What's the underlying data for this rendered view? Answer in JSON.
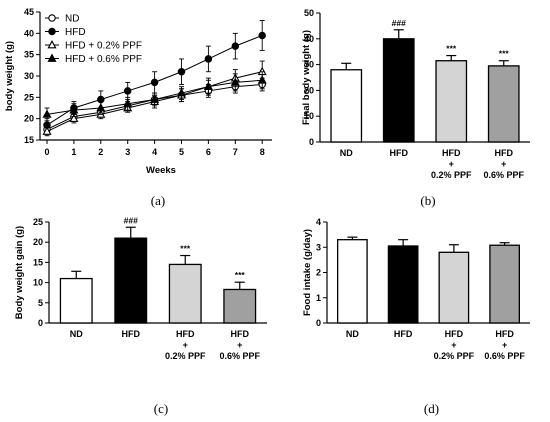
{
  "chart_data": [
    {
      "type": "line",
      "panel_label": "(a)",
      "title": "",
      "xlabel": "Weeks",
      "ylabel": "body weight (g)",
      "x": [
        0,
        1,
        2,
        3,
        4,
        5,
        6,
        7,
        8
      ],
      "xlim": [
        0,
        8
      ],
      "ylim": [
        15,
        45
      ],
      "yticks": [
        15,
        20,
        25,
        30,
        35,
        40,
        45
      ],
      "legend_position": "top-left",
      "series": [
        {
          "name": "ND",
          "marker": "open-circle",
          "values": [
            17.5,
            20.5,
            21.5,
            23.0,
            24.5,
            25.5,
            26.5,
            27.5,
            28.0
          ],
          "errors": [
            1.0,
            1.0,
            1.0,
            1.0,
            1.0,
            1.5,
            1.5,
            1.5,
            1.5
          ]
        },
        {
          "name": "HFD",
          "marker": "filled-circle",
          "values": [
            18.5,
            22.5,
            24.5,
            26.5,
            28.5,
            31.0,
            34.0,
            37.0,
            39.5
          ],
          "errors": [
            1.5,
            1.5,
            2.0,
            2.0,
            2.5,
            3.0,
            3.0,
            3.0,
            3.5
          ]
        },
        {
          "name": "HFD + 0.2% PPF",
          "marker": "open-triangle",
          "values": [
            17.0,
            20.0,
            21.0,
            22.5,
            24.0,
            25.5,
            27.5,
            29.5,
            31.0
          ],
          "errors": [
            1.0,
            1.0,
            1.0,
            1.0,
            1.5,
            1.5,
            2.0,
            2.0,
            2.5
          ]
        },
        {
          "name": "HFD + 0.6% PPF",
          "marker": "filled-triangle",
          "values": [
            21.0,
            22.0,
            22.5,
            23.5,
            24.5,
            26.0,
            27.5,
            28.5,
            29.0
          ],
          "errors": [
            1.5,
            1.5,
            1.5,
            1.5,
            1.5,
            1.5,
            1.5,
            2.0,
            2.0
          ]
        }
      ]
    },
    {
      "type": "bar",
      "panel_label": "(b)",
      "title": "",
      "xlabel": "",
      "ylabel": "Final body weight (g)",
      "ylim": [
        0,
        50
      ],
      "yticks": [
        0,
        10,
        20,
        30,
        40,
        50
      ],
      "categories": [
        [
          "ND"
        ],
        [
          "HFD"
        ],
        [
          "HFD",
          "+",
          "0.2% PPF"
        ],
        [
          "HFD",
          "+",
          "0.6% PPF"
        ]
      ],
      "values": [
        28,
        40,
        31.5,
        29.5
      ],
      "errors": [
        2.5,
        3.5,
        2.0,
        2.0
      ],
      "colors": [
        "#ffffff",
        "#000000",
        "#d4d4d4",
        "#a0a0a0"
      ],
      "annotations": [
        "",
        "###",
        "***",
        "***"
      ]
    },
    {
      "type": "bar",
      "panel_label": "(c)",
      "title": "",
      "xlabel": "",
      "ylabel": "Body weight gain (g)",
      "ylim": [
        0,
        25
      ],
      "yticks": [
        0,
        5,
        10,
        15,
        20,
        25
      ],
      "categories": [
        [
          "ND"
        ],
        [
          "HFD"
        ],
        [
          "HFD",
          "+",
          "0.2% PPF"
        ],
        [
          "HFD",
          "+",
          "0.6% PPF"
        ]
      ],
      "values": [
        11,
        21,
        14.5,
        8.3
      ],
      "errors": [
        1.8,
        2.7,
        2.2,
        1.8
      ],
      "colors": [
        "#ffffff",
        "#000000",
        "#d4d4d4",
        "#a0a0a0"
      ],
      "annotations": [
        "",
        "###",
        "***",
        "***"
      ]
    },
    {
      "type": "bar",
      "panel_label": "(d)",
      "title": "",
      "xlabel": "",
      "ylabel": "Food intake (g/day)",
      "ylim": [
        0,
        4
      ],
      "yticks": [
        0,
        1,
        2,
        3,
        4
      ],
      "categories": [
        [
          "ND"
        ],
        [
          "HFD"
        ],
        [
          "HFD",
          "+",
          "0.2% PPF"
        ],
        [
          "HFD",
          "+",
          "0.6% PPF"
        ]
      ],
      "values": [
        3.3,
        3.05,
        2.8,
        3.08
      ],
      "errors": [
        0.1,
        0.25,
        0.3,
        0.1
      ],
      "colors": [
        "#ffffff",
        "#000000",
        "#d4d4d4",
        "#a0a0a0"
      ],
      "annotations": [
        "",
        "",
        "",
        ""
      ]
    }
  ]
}
